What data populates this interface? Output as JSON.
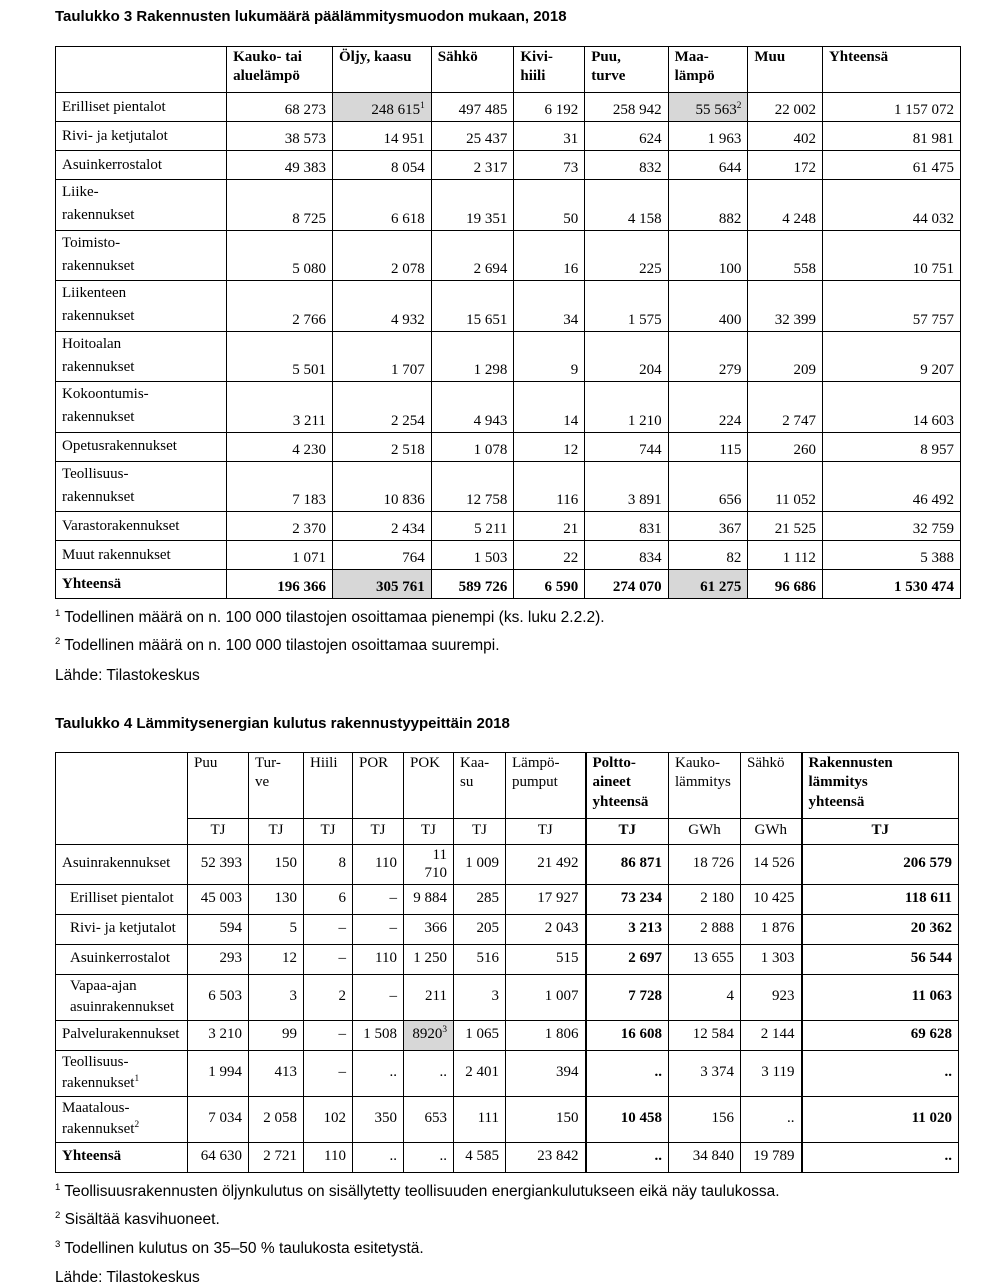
{
  "page": {
    "background": "#ffffff",
    "highlight_gray": "#d7d7d7"
  },
  "table3": {
    "title": "Taulukko 3 Rakennusten lukumäärä päälämmitysmuodon mukaan, 2018",
    "columns": [
      "Kauko- tai\naluelämpö",
      "Öljy, kaasu",
      "Sähkö",
      "Kivi-\nhiili",
      "Puu,\nturve",
      "Maa-\nlämpö",
      "Muu",
      "Yhteensä"
    ],
    "rows": [
      {
        "label": "Erilliset pientalot",
        "cells": [
          "68 273",
          {
            "v": "248 615",
            "sup": "1",
            "gray": true
          },
          "497 485",
          "6 192",
          "258 942",
          {
            "v": "55 563",
            "sup": "2",
            "gray": true
          },
          "22 002",
          "1 157 072"
        ]
      },
      {
        "label": "Rivi- ja ketjutalot",
        "cells": [
          "38 573",
          "14 951",
          "25 437",
          "31",
          "624",
          "1 963",
          "402",
          "81 981"
        ]
      },
      {
        "label": "Asuinkerrostalot",
        "cells": [
          "49 383",
          "8 054",
          "2 317",
          "73",
          "832",
          "644",
          "172",
          "61 475"
        ]
      },
      {
        "label": "Liike-\nrakennukset",
        "cells": [
          "8 725",
          "6 618",
          "19 351",
          "50",
          "4 158",
          "882",
          "4 248",
          "44 032"
        ]
      },
      {
        "label": "Toimisto-\nrakennukset",
        "cells": [
          "5 080",
          "2 078",
          "2 694",
          "16",
          "225",
          "100",
          "558",
          "10 751"
        ]
      },
      {
        "label": "Liikenteen\nrakennukset",
        "cells": [
          "2 766",
          "4 932",
          "15 651",
          "34",
          "1 575",
          "400",
          "32 399",
          "57 757"
        ]
      },
      {
        "label": "Hoitoalan\nrakennukset",
        "cells": [
          "5 501",
          "1 707",
          "1 298",
          "9",
          "204",
          "279",
          "209",
          "9 207"
        ]
      },
      {
        "label": "Kokoontumis-\nrakennukset",
        "cells": [
          "3 211",
          "2 254",
          "4 943",
          "14",
          "1 210",
          "224",
          "2 747",
          "14 603"
        ]
      },
      {
        "label": "Opetusrakennukset",
        "cells": [
          "4 230",
          "2 518",
          "1 078",
          "12",
          "744",
          "115",
          "260",
          "8 957"
        ]
      },
      {
        "label": "Teollisuus-\nrakennukset",
        "cells": [
          "7 183",
          "10 836",
          "12 758",
          "116",
          "3 891",
          "656",
          "11 052",
          "46 492"
        ]
      },
      {
        "label": "Varastorakennukset",
        "cells": [
          "2 370",
          "2 434",
          "5 211",
          "21",
          "831",
          "367",
          "21 525",
          "32 759"
        ]
      },
      {
        "label": "Muut rakennukset",
        "cells": [
          "1 071",
          "764",
          "1 503",
          "22",
          "834",
          "82",
          "1 112",
          "5 388"
        ]
      },
      {
        "label": "Yhteensä",
        "bold": true,
        "cells": [
          "196 366",
          {
            "v": "305 761",
            "gray": true
          },
          "589 726",
          "6 590",
          "274 070",
          {
            "v": "61 275",
            "gray": true
          },
          "96 686",
          "1 530 474"
        ]
      }
    ],
    "footnotes": [
      {
        "sup": "1",
        "text": "Todellinen määrä on n. 100 000 tilastojen osoittamaa pienempi (ks. luku 2.2.2)."
      },
      {
        "sup": "2",
        "text": "Todellinen määrä on n. 100 000 tilastojen osoittamaa suurempi."
      }
    ],
    "source": "Lähde: Tilastokeskus"
  },
  "table4": {
    "title": "Taulukko 4 Lämmitysenergian kulutus rakennustyypeittäin 2018",
    "columns": [
      {
        "label": "Puu",
        "unit": "TJ"
      },
      {
        "label": "Tur-\nve",
        "unit": "TJ"
      },
      {
        "label": "Hiili",
        "unit": "TJ"
      },
      {
        "label": "POR",
        "unit": "TJ"
      },
      {
        "label": "POK",
        "unit": "TJ"
      },
      {
        "label": "Kaa-\nsu",
        "unit": "TJ"
      },
      {
        "label": "Lämpö-\npumput",
        "unit": "TJ"
      },
      {
        "label": "Poltto-\naineet\nyhteensä",
        "unit": "TJ",
        "bold": true
      },
      {
        "label": "Kauko-\nlämmitys",
        "unit": "GWh"
      },
      {
        "label": "Sähkö",
        "unit": "GWh"
      },
      {
        "label": "Rakennusten\nlämmitys\nyhteensä",
        "unit": "TJ",
        "bold": true
      }
    ],
    "rows": [
      {
        "label": "Asuinrakennukset",
        "cells": [
          "52 393",
          "150",
          "8",
          "110",
          {
            "v": "11 710",
            "wrap": true
          },
          "1 009",
          "21 492",
          "86 871",
          "18 726",
          "14 526",
          "206 579"
        ]
      },
      {
        "label": "Erilliset pientalot",
        "indent": true,
        "cells": [
          "45 003",
          "130",
          "6",
          "–",
          "9 884",
          "285",
          "17 927",
          "73 234",
          "2 180",
          "10 425",
          "118 611"
        ]
      },
      {
        "label": "Rivi- ja ketjutalot",
        "indent": true,
        "cells": [
          "594",
          "5",
          "–",
          "–",
          "366",
          "205",
          "2 043",
          "3 213",
          "2 888",
          "1 876",
          "20 362"
        ]
      },
      {
        "label": "Asuinkerrostalot",
        "indent": true,
        "cells": [
          "293",
          "12",
          "–",
          "110",
          "1 250",
          "516",
          "515",
          "2 697",
          "13 655",
          "1 303",
          "56 544"
        ]
      },
      {
        "label": "Vapaa-ajan\nasuinrakennukset",
        "indent": true,
        "cells": [
          "6 503",
          "3",
          "2",
          "–",
          "211",
          "3",
          "1 007",
          "7 728",
          "4",
          "923",
          "11 063"
        ]
      },
      {
        "label": "Palvelurakennukset",
        "cells": [
          "3 210",
          "99",
          "–",
          "1 508",
          {
            "v": "8920",
            "sup": "3",
            "gray": true
          },
          "1 065",
          "1 806",
          "16 608",
          "12 584",
          "2 144",
          "69 628"
        ]
      },
      {
        "label": "Teollisuus-\nrakennukset",
        "labelSup": "1",
        "cells": [
          "1 994",
          "413",
          "–",
          "..",
          "..",
          "2 401",
          "394",
          "..",
          "3 374",
          "3 119",
          ".."
        ]
      },
      {
        "label": "Maatalous-\nrakennukset",
        "labelSup": "2",
        "cells": [
          "7 034",
          "2 058",
          "102",
          "350",
          "653",
          "111",
          "150",
          "10 458",
          "156",
          "..",
          "11 020"
        ]
      },
      {
        "label": "Yhteensä",
        "boldLabel": true,
        "cells": [
          "64 630",
          "2 721",
          "110",
          "..",
          "..",
          "4 585",
          "23 842",
          "..",
          "34 840",
          "19 789",
          ".."
        ]
      }
    ],
    "footnotes": [
      {
        "sup": "1",
        "text": "Teollisuusrakennusten öljynkulutus on sisällytetty teollisuuden energiankulutukseen eikä näy taulukossa."
      },
      {
        "sup": "2",
        "text": "Sisältää kasvihuoneet."
      },
      {
        "sup": "3",
        "text": "Todellinen kulutus on 35–50 % taulukosta esitetystä."
      }
    ],
    "source": "Lähde: Tilastokeskus"
  }
}
